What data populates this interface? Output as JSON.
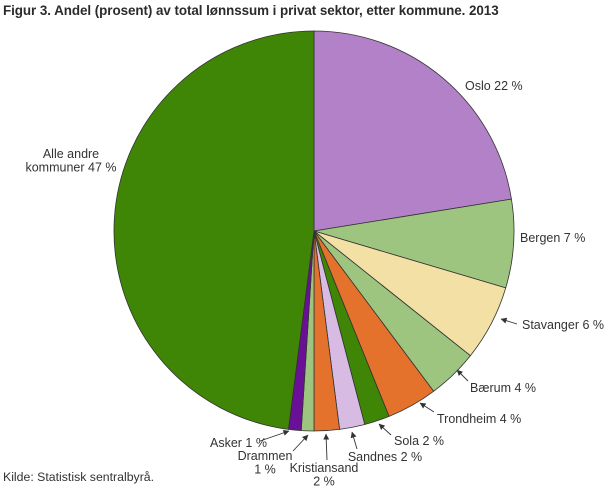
{
  "title": "Figur 3. Andel (prosent) av total lønnssum i privat sektor, etter kommune. 2013",
  "source": "Kilde: Statistisk sentralbyrå.",
  "colors": {
    "purple": "#b381c7",
    "light_green": "#9ec580",
    "tan": "#f2e0a4",
    "orange": "#e5722c",
    "dark_green": "#3f8606",
    "lavender": "#d7bbe3",
    "dark_purple": "#6a1096",
    "outline": "#333333",
    "text": "#333333",
    "background": "#ffffff"
  },
  "chart_data": {
    "type": "pie",
    "title": "Figur 3. Andel (prosent) av total lønnssum i privat sektor, etter kommune. 2013",
    "source": "Kilde: Statistisk sentralbyrå.",
    "unit": "percent of total wage sum, private sector",
    "year": "2013",
    "start_angle_deg": 0,
    "direction": "clockwise",
    "legend": "none (direct slice labels with leader arrows)",
    "slices": [
      {
        "name": "Oslo",
        "value_pct": 22,
        "label": "Oslo 22 %",
        "color": "#b381c7"
      },
      {
        "name": "Bergen",
        "value_pct": 7,
        "label": "Bergen 7 %",
        "color": "#9ec580"
      },
      {
        "name": "Stavanger",
        "value_pct": 6,
        "label": "Stavanger 6 %",
        "color": "#f2e0a4"
      },
      {
        "name": "Bærum",
        "value_pct": 4,
        "label": "Bærum 4 %",
        "color": "#9ec580"
      },
      {
        "name": "Trondheim",
        "value_pct": 4,
        "label": "Trondheim 4 %",
        "color": "#e5722c"
      },
      {
        "name": "Sola",
        "value_pct": 2,
        "label": "Sola 2 %",
        "color": "#3f8606"
      },
      {
        "name": "Sandnes",
        "value_pct": 2,
        "label": "Sandnes 2 %",
        "color": "#d7bbe3"
      },
      {
        "name": "Kristiansand",
        "value_pct": 2,
        "label": "Kristiansand\n2 %",
        "color": "#e5722c"
      },
      {
        "name": "Drammen",
        "value_pct": 1,
        "label": "Drammen\n1 %",
        "color": "#9ec580"
      },
      {
        "name": "Asker",
        "value_pct": 1,
        "label": "Asker 1 %",
        "color": "#6a1096"
      },
      {
        "name": "Alle andre kommuner",
        "value_pct": 47,
        "label": "Alle andre\nkommuner 47 %",
        "color": "#3f8606"
      }
    ]
  }
}
